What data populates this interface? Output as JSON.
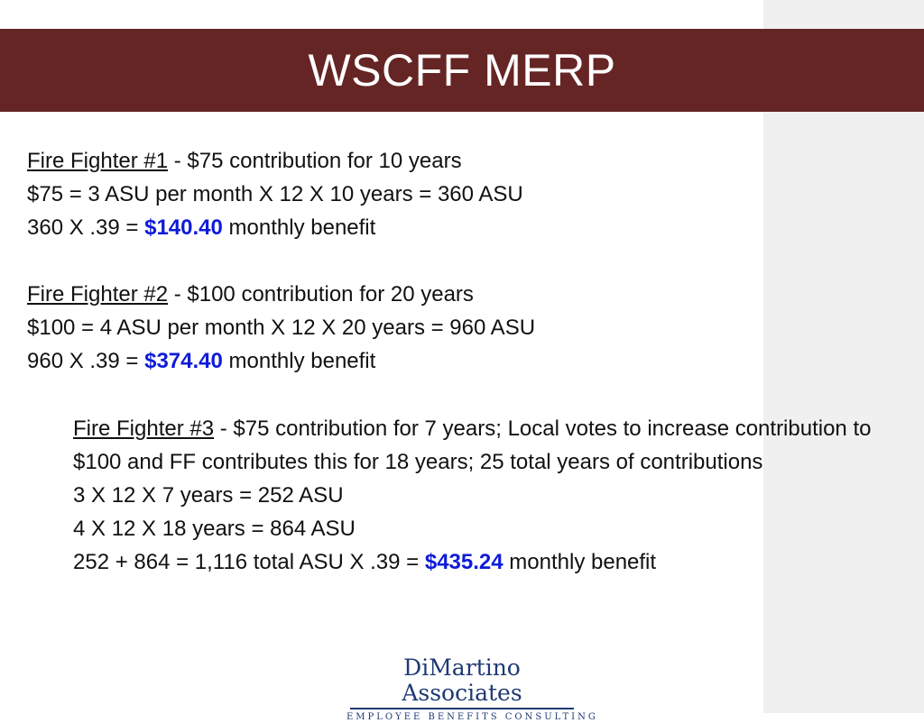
{
  "slide": {
    "title": "WSCFF MERP"
  },
  "ff1": {
    "label": "Fire Fighter #1",
    "desc": " - $75 contribution for 10 years",
    "line2": "$75 = 3 ASU per month X 12 X 10 years = 360 ASU",
    "line3_prefix": "360 X .39 = ",
    "amount": "$140.40",
    "line3_suffix": " monthly benefit"
  },
  "ff2": {
    "label": "Fire Fighter #2",
    "desc": " - $100 contribution for 20 years",
    "line2": "$100 = 4 ASU per month X 12 X 20 years = 960 ASU",
    "line3_prefix": "960 X .39 = ",
    "amount": "$374.40",
    "line3_suffix": " monthly benefit"
  },
  "ff3": {
    "label": "Fire Fighter #3",
    "desc": " - $75 contribution for 7 years;  Local votes to increase contribution to $100 and FF contributes this for 18 years; 25 total years of contributions",
    "line2": "3 X 12 X 7 years  = 252 ASU",
    "line3": "4 X 12 X 18 years = 864 ASU",
    "line4_prefix": "252 + 864 = 1,116 total ASU X .39 = ",
    "amount": "$435.24",
    "line4_suffix": " monthly benefit"
  },
  "logo": {
    "name": "DiMartino Associates",
    "tagline": "EMPLOYEE BENEFITS CONSULTING"
  },
  "colors": {
    "title_bar": "#652524",
    "amount": "#0f1bd9",
    "logo": "#1e3a73",
    "right_strip": "#f0f0f0"
  }
}
